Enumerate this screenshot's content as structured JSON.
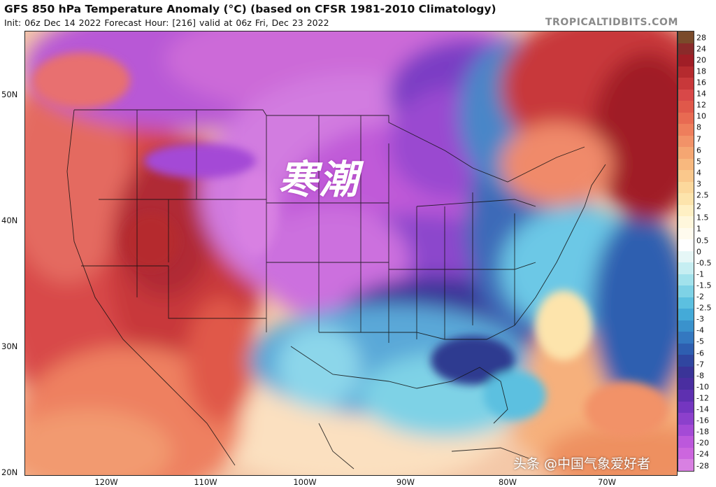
{
  "header": {
    "title": "GFS 850 hPa Temperature Anomaly (°C) (based on CFSR 1981-2010 Climatology)",
    "subtitle": "Init: 06z Dec 14 2022   Forecast Hour: [216]   valid at 06z Fri, Dec 23 2022",
    "brand": "TROPICALTIDBITS.COM"
  },
  "map": {
    "lat_labels": [
      "50N",
      "40N",
      "30N",
      "20N"
    ],
    "lon_labels": [
      "120W",
      "110W",
      "100W",
      "90W",
      "80W",
      "70W"
    ],
    "annotation": "寒潮",
    "watermark": "头条 @中国气象爱好者"
  },
  "colorbar": {
    "labels": [
      "28",
      "24",
      "20",
      "18",
      "16",
      "14",
      "12",
      "10",
      "8",
      "7",
      "6",
      "5",
      "4",
      "3",
      "2.5",
      "2",
      "1.5",
      "1",
      "0.5",
      "0",
      "-0.5",
      "-1",
      "-1.5",
      "-2",
      "-2.5",
      "-3",
      "-4",
      "-5",
      "-6",
      "-7",
      "-8",
      "-10",
      "-12",
      "-14",
      "-16",
      "-18",
      "-20",
      "-24",
      "-28"
    ],
    "colors": [
      "#7a4a2a",
      "#8a2a2a",
      "#a01e26",
      "#b52a2e",
      "#c8383a",
      "#d84848",
      "#e0584a",
      "#e86a52",
      "#ee7e5c",
      "#f29268",
      "#f5a672",
      "#f8b87e",
      "#fac88c",
      "#fcd89c",
      "#fde4ac",
      "#fff0c4",
      "#fff7dc",
      "#fffbee",
      "#ffffff",
      "#e6f7f7",
      "#c6eef2",
      "#a2e2ec",
      "#7ed2e6",
      "#5cc0e0",
      "#44aad8",
      "#3a92cc",
      "#3478c0",
      "#2e5eb0",
      "#3046a0",
      "#3a3498",
      "#4a2ea0",
      "#5e30b0",
      "#7436c0",
      "#8c40cc",
      "#a44ad6",
      "#bc58dc",
      "#cc66de",
      "#d880e2"
    ]
  }
}
